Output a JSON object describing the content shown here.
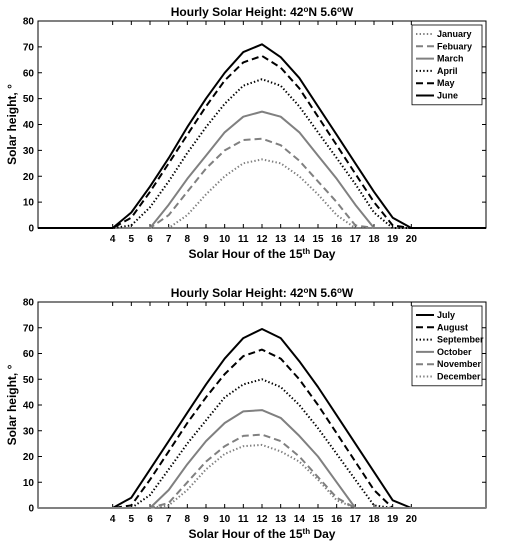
{
  "chart_data": [
    {
      "type": "line",
      "title_main": "Hourly Solar Height: 42",
      "title_deg1": "o",
      "title_mid": "N 5.6",
      "title_deg2": "o",
      "title_end": "W",
      "xlabel_main": "Solar Hour of the 15",
      "xlabel_sup": "th",
      "xlabel_end": " Day",
      "ylabel": "Solar height, °",
      "xlim": [
        0,
        24
      ],
      "ylim": [
        0,
        80
      ],
      "yticks": [
        0,
        10,
        20,
        30,
        40,
        50,
        60,
        70,
        80
      ],
      "xticks": [
        4,
        5,
        6,
        7,
        8,
        9,
        10,
        11,
        12,
        13,
        14,
        15,
        16,
        17,
        18,
        19,
        20
      ],
      "x": [
        0,
        1,
        2,
        3,
        4,
        5,
        6,
        7,
        8,
        9,
        10,
        11,
        12,
        13,
        14,
        15,
        16,
        17,
        18,
        19,
        20,
        21,
        22,
        23,
        24
      ],
      "legend_position": "top-right",
      "grid": false,
      "series": [
        {
          "name": "January",
          "style": "dotted-gray",
          "values": [
            0,
            0,
            0,
            0,
            0,
            0,
            0,
            0,
            5,
            13,
            20,
            25,
            26.5,
            25,
            20,
            13,
            5,
            0,
            0,
            0,
            0,
            0,
            0,
            0,
            0
          ]
        },
        {
          "name": "Febuary",
          "style": "dashed-gray",
          "values": [
            0,
            0,
            0,
            0,
            0,
            0,
            0,
            5,
            14,
            23,
            30,
            34,
            34.5,
            32,
            26,
            18,
            10,
            1,
            0,
            0,
            0,
            0,
            0,
            0,
            0
          ]
        },
        {
          "name": "March",
          "style": "solid-gray",
          "values": [
            0,
            0,
            0,
            0,
            0,
            0,
            0,
            9,
            19,
            28,
            37,
            43,
            45,
            43,
            37,
            28,
            19,
            9,
            0,
            0,
            0,
            0,
            0,
            0,
            0
          ]
        },
        {
          "name": "April",
          "style": "dotted-black",
          "values": [
            0,
            0,
            0,
            0,
            0,
            1,
            8,
            18,
            29,
            39,
            48,
            55,
            57.5,
            55,
            47,
            37,
            27,
            17,
            6,
            0,
            0,
            0,
            0,
            0,
            0
          ]
        },
        {
          "name": "May",
          "style": "dashed-black",
          "values": [
            0,
            0,
            0,
            0,
            0,
            4,
            14,
            25,
            36,
            47,
            57,
            64,
            66.5,
            62,
            54,
            43,
            32,
            21,
            10,
            1,
            0,
            0,
            0,
            0,
            0
          ]
        },
        {
          "name": "June",
          "style": "solid-black",
          "values": [
            0,
            0,
            0,
            0,
            0,
            6,
            16,
            27,
            39,
            50,
            60,
            68,
            71,
            66,
            58,
            47,
            36,
            25,
            14,
            4,
            0,
            0,
            0,
            0,
            0
          ]
        }
      ]
    },
    {
      "type": "line",
      "title_main": "Hourly Solar Height: 42",
      "title_deg1": "o",
      "title_mid": "N 5.6",
      "title_deg2": "o",
      "title_end": "W",
      "xlabel_main": "Solar Hour of the 15",
      "xlabel_sup": "th",
      "xlabel_end": " Day",
      "ylabel": "Solar height, °",
      "xlim": [
        0,
        24
      ],
      "ylim": [
        0,
        80
      ],
      "yticks": [
        0,
        10,
        20,
        30,
        40,
        50,
        60,
        70,
        80
      ],
      "xticks": [
        4,
        5,
        6,
        7,
        8,
        9,
        10,
        11,
        12,
        13,
        14,
        15,
        16,
        17,
        18,
        19,
        20
      ],
      "x": [
        0,
        1,
        2,
        3,
        4,
        5,
        6,
        7,
        8,
        9,
        10,
        11,
        12,
        13,
        14,
        15,
        16,
        17,
        18,
        19,
        20,
        21,
        22,
        23,
        24
      ],
      "legend_position": "top-right",
      "grid": false,
      "series": [
        {
          "name": "July",
          "style": "solid-black",
          "values": [
            0,
            0,
            0,
            0,
            0,
            4,
            15,
            26,
            37,
            48,
            58,
            66,
            69.5,
            66,
            57,
            47,
            36,
            25,
            14,
            3,
            0,
            0,
            0,
            0,
            0
          ]
        },
        {
          "name": "August",
          "style": "dashed-black",
          "values": [
            0,
            0,
            0,
            0,
            0,
            1,
            11,
            22,
            33,
            43,
            52,
            59,
            61.5,
            58,
            50,
            40,
            29,
            18,
            7,
            0,
            0,
            0,
            0,
            0,
            0
          ]
        },
        {
          "name": "September",
          "style": "dotted-black",
          "values": [
            0,
            0,
            0,
            0,
            0,
            0,
            5,
            15,
            25,
            34,
            43,
            48,
            50,
            47,
            40,
            31,
            21,
            11,
            1,
            0,
            0,
            0,
            0,
            0,
            0
          ]
        },
        {
          "name": "October",
          "style": "solid-gray",
          "values": [
            0,
            0,
            0,
            0,
            0,
            0,
            0,
            7,
            17,
            26,
            33,
            37.5,
            38,
            35,
            28,
            20,
            10,
            0,
            0,
            0,
            0,
            0,
            0,
            0,
            0
          ]
        },
        {
          "name": "November",
          "style": "dashed-gray",
          "values": [
            0,
            0,
            0,
            0,
            0,
            0,
            0,
            2,
            10,
            18,
            24,
            28,
            28.5,
            26,
            20,
            12,
            4,
            0,
            0,
            0,
            0,
            0,
            0,
            0,
            0
          ]
        },
        {
          "name": "December",
          "style": "dotted-gray",
          "values": [
            0,
            0,
            0,
            0,
            0,
            0,
            0,
            1,
            7,
            15,
            21,
            24,
            24.5,
            22,
            18,
            11,
            3,
            0,
            0,
            0,
            0,
            0,
            0,
            0,
            0
          ]
        }
      ]
    }
  ]
}
